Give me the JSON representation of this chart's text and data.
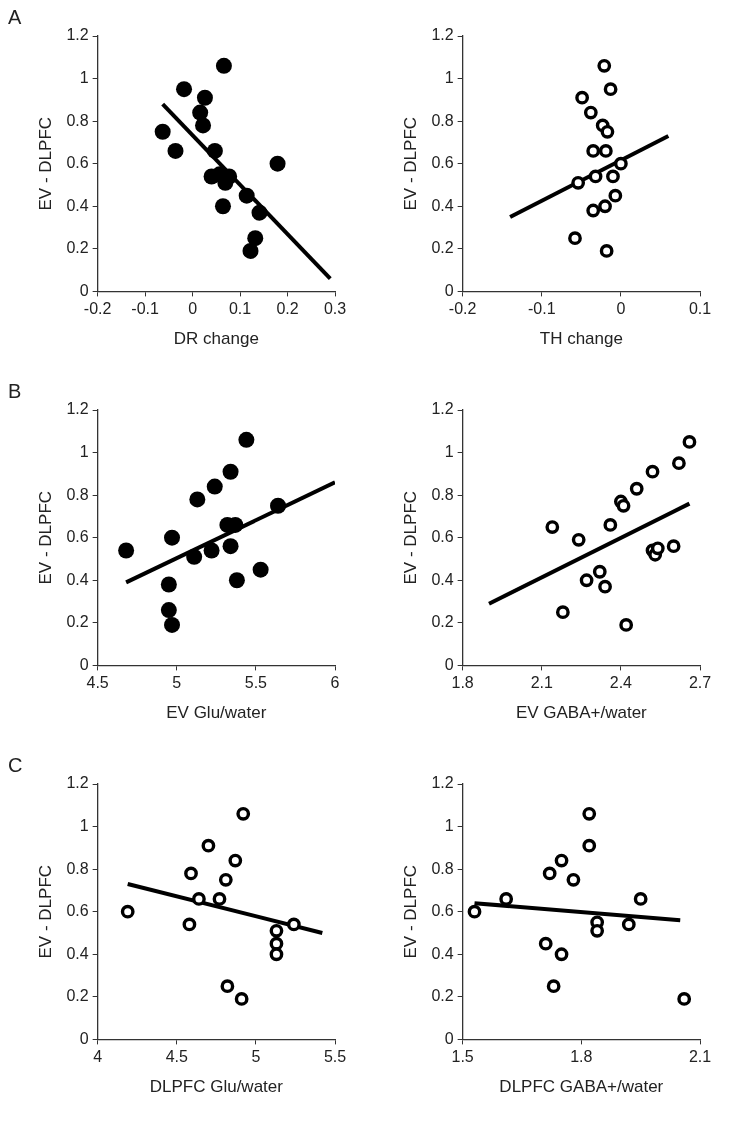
{
  "chart_data": [
    {
      "type": "scatter",
      "annotations": [
        "A"
      ],
      "xlabel": "DR change",
      "ylabel": "EV - DLPFC",
      "xlim": [
        -0.2,
        0.3
      ],
      "xticks": [
        -0.2,
        -0.1,
        0,
        0.1,
        0.2,
        0.3
      ],
      "ylim": [
        0,
        1.2
      ],
      "yticks": [
        0,
        0.2,
        0.4,
        0.6,
        0.8,
        1,
        1.2
      ],
      "grid": false,
      "legend": false,
      "series": [
        {
          "type": "scatter",
          "marker": "circle",
          "color": "#000000",
          "x": [
            0.066,
            -0.018,
            0.026,
            0.016,
            0.022,
            -0.063,
            -0.036,
            0.047,
            0.179,
            0.04,
            0.057,
            0.077,
            0.069,
            0.114,
            0.064,
            0.141,
            0.132,
            0.122
          ],
          "values": [
            1.06,
            0.95,
            0.91,
            0.84,
            0.78,
            0.75,
            0.66,
            0.66,
            0.6,
            0.54,
            0.55,
            0.54,
            0.51,
            0.45,
            0.4,
            0.37,
            0.25,
            0.19
          ]
        },
        {
          "type": "line",
          "marker": "none",
          "color": "#000000",
          "x": [
            -0.063,
            0.29
          ],
          "values": [
            0.88,
            0.06
          ]
        }
      ]
    },
    {
      "type": "scatter",
      "xlabel": "TH change",
      "ylabel": "EV - DLPFC",
      "xlim": [
        -0.2,
        0.1
      ],
      "xticks": [
        -0.2,
        -0.1,
        0,
        0.1
      ],
      "ylim": [
        0,
        1.2
      ],
      "yticks": [
        0,
        0.2,
        0.4,
        0.6,
        0.8,
        1,
        1.2
      ],
      "grid": false,
      "legend": false,
      "series": [
        {
          "type": "scatter",
          "marker": "circle-open",
          "color": "#000000",
          "x": [
            -0.021,
            -0.013,
            -0.049,
            -0.038,
            -0.023,
            -0.017,
            -0.035,
            -0.019,
            0.0,
            -0.054,
            -0.032,
            -0.01,
            -0.007,
            -0.035,
            -0.02,
            -0.058,
            -0.018
          ],
          "values": [
            1.06,
            0.95,
            0.91,
            0.84,
            0.78,
            0.75,
            0.66,
            0.66,
            0.6,
            0.51,
            0.54,
            0.54,
            0.45,
            0.38,
            0.4,
            0.25,
            0.19
          ]
        },
        {
          "type": "line",
          "marker": "none",
          "color": "#000000",
          "x": [
            -0.14,
            0.06
          ],
          "values": [
            0.35,
            0.73
          ]
        }
      ]
    },
    {
      "type": "scatter",
      "annotations": [
        "B"
      ],
      "xlabel": "EV Glu/water",
      "ylabel": "EV - DLPFC",
      "xlim": [
        4.5,
        6
      ],
      "xticks": [
        4.5,
        5,
        5.5,
        6
      ],
      "ylim": [
        0,
        1.2
      ],
      "yticks": [
        0,
        0.2,
        0.4,
        0.6,
        0.8,
        1,
        1.2
      ],
      "grid": false,
      "legend": false,
      "series": [
        {
          "type": "scatter",
          "marker": "circle",
          "color": "#000000",
          "x": [
            5.44,
            5.34,
            5.24,
            5.13,
            5.64,
            5.32,
            5.37,
            4.97,
            4.68,
            5.22,
            5.34,
            5.11,
            5.53,
            5.38,
            4.95,
            4.95,
            4.97
          ],
          "values": [
            1.06,
            0.91,
            0.84,
            0.78,
            0.75,
            0.66,
            0.66,
            0.6,
            0.54,
            0.54,
            0.56,
            0.51,
            0.45,
            0.4,
            0.38,
            0.26,
            0.19
          ]
        },
        {
          "type": "line",
          "marker": "none",
          "color": "#000000",
          "x": [
            4.68,
            6
          ],
          "values": [
            0.39,
            0.86
          ]
        }
      ]
    },
    {
      "type": "scatter",
      "xlabel": "EV GABA+/water",
      "ylabel": "EV - DLPFC",
      "xlim": [
        1.8,
        2.7
      ],
      "xticks": [
        1.8,
        2.1,
        2.4,
        2.7
      ],
      "ylim": [
        0,
        1.2
      ],
      "yticks": [
        0,
        0.2,
        0.4,
        0.6,
        0.8,
        1,
        1.2
      ],
      "grid": false,
      "legend": false,
      "series": [
        {
          "type": "scatter",
          "marker": "circle-open",
          "color": "#000000",
          "x": [
            2.14,
            2.24,
            2.18,
            2.27,
            2.32,
            2.34,
            2.36,
            2.4,
            2.41,
            2.46,
            2.52,
            2.42,
            2.52,
            2.53,
            2.54,
            2.6,
            2.62,
            2.66
          ],
          "values": [
            0.65,
            0.59,
            0.25,
            0.4,
            0.44,
            0.37,
            0.66,
            0.77,
            0.75,
            0.83,
            0.91,
            0.19,
            0.54,
            0.52,
            0.55,
            0.56,
            0.95,
            1.05
          ]
        },
        {
          "type": "line",
          "marker": "none",
          "color": "#000000",
          "x": [
            1.9,
            2.66
          ],
          "values": [
            0.29,
            0.76
          ]
        }
      ]
    },
    {
      "type": "scatter",
      "annotations": [
        "C"
      ],
      "xlabel": "DLPFC Glu/water",
      "ylabel": "EV - DLPFC",
      "xlim": [
        4,
        5.5
      ],
      "xticks": [
        4,
        4.5,
        5,
        5.5
      ],
      "ylim": [
        0,
        1.2
      ],
      "yticks": [
        0,
        0.2,
        0.4,
        0.6,
        0.8,
        1,
        1.2
      ],
      "grid": false,
      "legend": false,
      "series": [
        {
          "type": "scatter",
          "marker": "circle-open",
          "color": "#000000",
          "x": [
            4.19,
            4.58,
            4.59,
            4.64,
            4.7,
            4.77,
            4.81,
            4.87,
            4.92,
            4.82,
            4.91,
            5.13,
            5.13,
            5.13,
            5.24
          ],
          "values": [
            0.6,
            0.54,
            0.78,
            0.66,
            0.91,
            0.66,
            0.75,
            0.84,
            1.06,
            0.25,
            0.19,
            0.51,
            0.45,
            0.4,
            0.54
          ]
        },
        {
          "type": "line",
          "marker": "none",
          "color": "#000000",
          "x": [
            4.19,
            5.42
          ],
          "values": [
            0.73,
            0.5
          ]
        }
      ]
    },
    {
      "type": "scatter",
      "xlabel": "DLPFC GABA+/water",
      "ylabel": "EV - DLPFC",
      "xlim": [
        1.5,
        2.1
      ],
      "xticks": [
        1.5,
        1.8,
        2.1
      ],
      "ylim": [
        0,
        1.2
      ],
      "yticks": [
        0,
        0.2,
        0.4,
        0.6,
        0.8,
        1,
        1.2
      ],
      "grid": false,
      "legend": false,
      "series": [
        {
          "type": "scatter",
          "marker": "circle-open",
          "color": "#000000",
          "x": [
            1.53,
            1.61,
            1.72,
            1.75,
            1.78,
            1.82,
            1.82,
            1.71,
            1.75,
            1.73,
            1.84,
            1.84,
            1.92,
            1.95,
            2.06
          ],
          "values": [
            0.6,
            0.66,
            0.78,
            0.84,
            0.75,
            1.06,
            0.91,
            0.45,
            0.4,
            0.25,
            0.55,
            0.51,
            0.54,
            0.66,
            0.19
          ]
        },
        {
          "type": "line",
          "marker": "none",
          "color": "#000000",
          "x": [
            1.53,
            2.05
          ],
          "values": [
            0.64,
            0.56
          ]
        }
      ]
    }
  ]
}
